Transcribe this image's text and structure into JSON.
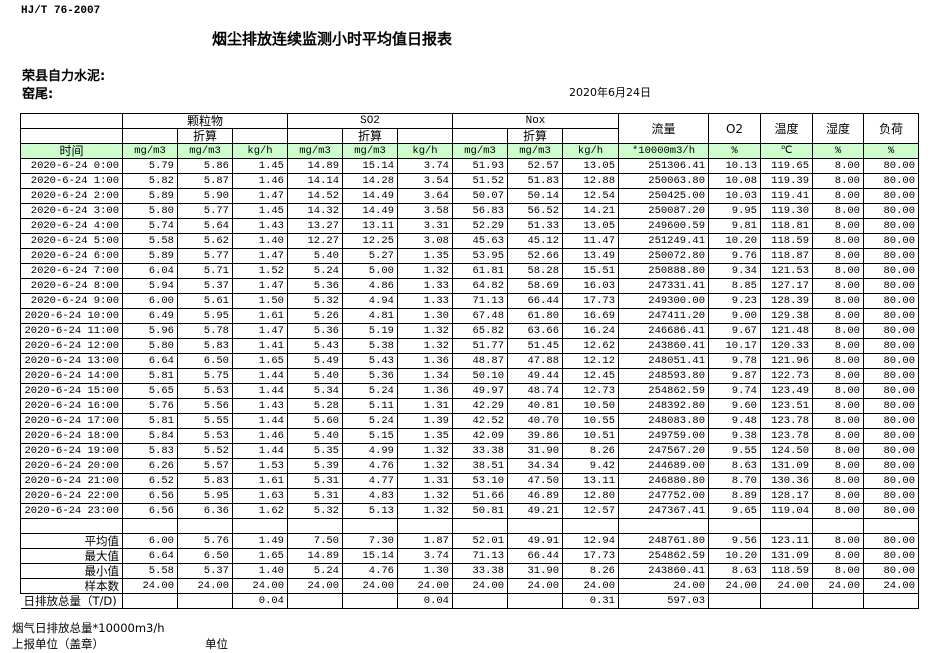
{
  "header": {
    "standard": "HJ/T  76-2007",
    "title": "烟尘排放连续监测小时平均值日报表",
    "company": "荣县自力水泥:",
    "kiln": "窑尾:",
    "date": "2020年6月24日"
  },
  "table": {
    "groups": {
      "particulate": "颗粒物",
      "so2": "SO2",
      "nox": "Nox",
      "flow": "流量",
      "o2": "O2",
      "temp": "温度",
      "humidity": "湿度",
      "load": "负荷"
    },
    "converted": "折算",
    "time_label": "时间",
    "units": [
      "mg/m3",
      "mg/m3",
      "kg/h",
      "mg/m3",
      "mg/m3",
      "kg/h",
      "mg/m3",
      "mg/m3",
      "kg/h",
      "*10000m3/h",
      "%",
      "℃",
      "%",
      "%"
    ],
    "header_color": "#ccffcc",
    "rows": [
      [
        "2020-6-24 0:00",
        "5.79",
        "5.86",
        "1.45",
        "14.89",
        "15.14",
        "3.74",
        "51.93",
        "52.57",
        "13.05",
        "251306.41",
        "10.13",
        "119.65",
        "8.00",
        "80.00"
      ],
      [
        "2020-6-24 1:00",
        "5.82",
        "5.87",
        "1.46",
        "14.14",
        "14.28",
        "3.54",
        "51.52",
        "51.83",
        "12.88",
        "250063.80",
        "10.08",
        "119.39",
        "8.00",
        "80.00"
      ],
      [
        "2020-6-24 2:00",
        "5.89",
        "5.90",
        "1.47",
        "14.52",
        "14.49",
        "3.64",
        "50.07",
        "50.14",
        "12.54",
        "250425.00",
        "10.03",
        "119.41",
        "8.00",
        "80.00"
      ],
      [
        "2020-6-24 3:00",
        "5.80",
        "5.77",
        "1.45",
        "14.32",
        "14.49",
        "3.58",
        "56.83",
        "56.52",
        "14.21",
        "250087.20",
        "9.95",
        "119.30",
        "8.00",
        "80.00"
      ],
      [
        "2020-6-24 4:00",
        "5.74",
        "5.64",
        "1.43",
        "13.27",
        "13.11",
        "3.31",
        "52.29",
        "51.33",
        "13.05",
        "249600.59",
        "9.81",
        "118.81",
        "8.00",
        "80.00"
      ],
      [
        "2020-6-24 5:00",
        "5.58",
        "5.62",
        "1.40",
        "12.27",
        "12.25",
        "3.08",
        "45.63",
        "45.12",
        "11.47",
        "251249.41",
        "10.20",
        "118.59",
        "8.00",
        "80.00"
      ],
      [
        "2020-6-24 6:00",
        "5.89",
        "5.77",
        "1.47",
        "5.40",
        "5.27",
        "1.35",
        "53.95",
        "52.66",
        "13.49",
        "250072.80",
        "9.76",
        "118.87",
        "8.00",
        "80.00"
      ],
      [
        "2020-6-24 7:00",
        "6.04",
        "5.71",
        "1.52",
        "5.24",
        "5.00",
        "1.32",
        "61.81",
        "58.28",
        "15.51",
        "250888.80",
        "9.34",
        "121.53",
        "8.00",
        "80.00"
      ],
      [
        "2020-6-24 8:00",
        "5.94",
        "5.37",
        "1.47",
        "5.36",
        "4.86",
        "1.33",
        "64.82",
        "58.69",
        "16.03",
        "247331.41",
        "8.85",
        "127.17",
        "8.00",
        "80.00"
      ],
      [
        "2020-6-24 9:00",
        "6.00",
        "5.61",
        "1.50",
        "5.32",
        "4.94",
        "1.33",
        "71.13",
        "66.44",
        "17.73",
        "249300.00",
        "9.23",
        "128.39",
        "8.00",
        "80.00"
      ],
      [
        "2020-6-24 10:00",
        "6.49",
        "5.95",
        "1.61",
        "5.26",
        "4.81",
        "1.30",
        "67.48",
        "61.80",
        "16.69",
        "247411.20",
        "9.00",
        "129.38",
        "8.00",
        "80.00"
      ],
      [
        "2020-6-24 11:00",
        "5.96",
        "5.78",
        "1.47",
        "5.36",
        "5.19",
        "1.32",
        "65.82",
        "63.66",
        "16.24",
        "246686.41",
        "9.67",
        "121.48",
        "8.00",
        "80.00"
      ],
      [
        "2020-6-24 12:00",
        "5.80",
        "5.83",
        "1.41",
        "5.43",
        "5.38",
        "1.32",
        "51.77",
        "51.45",
        "12.62",
        "243860.41",
        "10.17",
        "120.33",
        "8.00",
        "80.00"
      ],
      [
        "2020-6-24 13:00",
        "6.64",
        "6.50",
        "1.65",
        "5.49",
        "5.43",
        "1.36",
        "48.87",
        "47.88",
        "12.12",
        "248051.41",
        "9.78",
        "121.96",
        "8.00",
        "80.00"
      ],
      [
        "2020-6-24 14:00",
        "5.81",
        "5.75",
        "1.44",
        "5.40",
        "5.36",
        "1.34",
        "50.10",
        "49.44",
        "12.45",
        "248593.80",
        "9.87",
        "122.73",
        "8.00",
        "80.00"
      ],
      [
        "2020-6-24 15:00",
        "5.65",
        "5.53",
        "1.44",
        "5.34",
        "5.24",
        "1.36",
        "49.97",
        "48.74",
        "12.73",
        "254862.59",
        "9.74",
        "123.49",
        "8.00",
        "80.00"
      ],
      [
        "2020-6-24 16:00",
        "5.76",
        "5.56",
        "1.43",
        "5.28",
        "5.11",
        "1.31",
        "42.29",
        "40.81",
        "10.50",
        "248392.80",
        "9.60",
        "123.51",
        "8.00",
        "80.00"
      ],
      [
        "2020-6-24 17:00",
        "5.81",
        "5.55",
        "1.44",
        "5.60",
        "5.24",
        "1.39",
        "42.52",
        "40.70",
        "10.55",
        "248083.80",
        "9.48",
        "123.78",
        "8.00",
        "80.00"
      ],
      [
        "2020-6-24 18:00",
        "5.84",
        "5.53",
        "1.46",
        "5.40",
        "5.15",
        "1.35",
        "42.09",
        "39.86",
        "10.51",
        "249759.00",
        "9.38",
        "123.78",
        "8.00",
        "80.00"
      ],
      [
        "2020-6-24 19:00",
        "5.83",
        "5.52",
        "1.44",
        "5.35",
        "4.99",
        "1.32",
        "33.38",
        "31.90",
        "8.26",
        "247567.20",
        "9.55",
        "124.50",
        "8.00",
        "80.00"
      ],
      [
        "2020-6-24 20:00",
        "6.26",
        "5.57",
        "1.53",
        "5.39",
        "4.76",
        "1.32",
        "38.51",
        "34.34",
        "9.42",
        "244689.00",
        "8.63",
        "131.09",
        "8.00",
        "80.00"
      ],
      [
        "2020-6-24 21:00",
        "6.52",
        "5.83",
        "1.61",
        "5.31",
        "4.77",
        "1.31",
        "53.10",
        "47.50",
        "13.11",
        "246880.80",
        "8.70",
        "130.36",
        "8.00",
        "80.00"
      ],
      [
        "2020-6-24 22:00",
        "6.56",
        "5.95",
        "1.63",
        "5.31",
        "4.83",
        "1.32",
        "51.66",
        "46.89",
        "12.80",
        "247752.00",
        "8.89",
        "128.17",
        "8.00",
        "80.00"
      ],
      [
        "2020-6-24 23:00",
        "6.56",
        "6.36",
        "1.62",
        "5.32",
        "5.13",
        "1.32",
        "50.81",
        "49.21",
        "12.57",
        "247367.41",
        "9.65",
        "119.04",
        "8.00",
        "80.00"
      ]
    ],
    "summary": [
      [
        "平均值",
        "6.00",
        "5.76",
        "1.49",
        "7.50",
        "7.30",
        "1.87",
        "52.01",
        "49.91",
        "12.94",
        "248761.80",
        "9.56",
        "123.11",
        "8.00",
        "80.00"
      ],
      [
        "最大值",
        "6.64",
        "6.50",
        "1.65",
        "14.89",
        "15.14",
        "3.74",
        "71.13",
        "66.44",
        "17.73",
        "254862.59",
        "10.20",
        "131.09",
        "8.00",
        "80.00"
      ],
      [
        "最小值",
        "5.58",
        "5.37",
        "1.40",
        "5.24",
        "4.76",
        "1.30",
        "33.38",
        "31.90",
        "8.26",
        "243860.41",
        "8.63",
        "118.59",
        "8.00",
        "80.00"
      ],
      [
        "样本数",
        "24.00",
        "24.00",
        "24.00",
        "24.00",
        "24.00",
        "24.00",
        "24.00",
        "24.00",
        "24.00",
        "24.00",
        "24.00",
        "24.00",
        "24.00",
        "24.00"
      ]
    ],
    "daily_total": [
      "日排放总量（T/D)",
      "",
      "",
      "0.04",
      "",
      "",
      "0.04",
      "",
      "",
      "0.31",
      "597.03",
      "",
      "",
      "",
      ""
    ]
  },
  "footer": {
    "flue_gas_total": "烟气日排放总量*10000m3/h",
    "reporting_unit": "上报单位（盖章）",
    "unit": "单位"
  }
}
